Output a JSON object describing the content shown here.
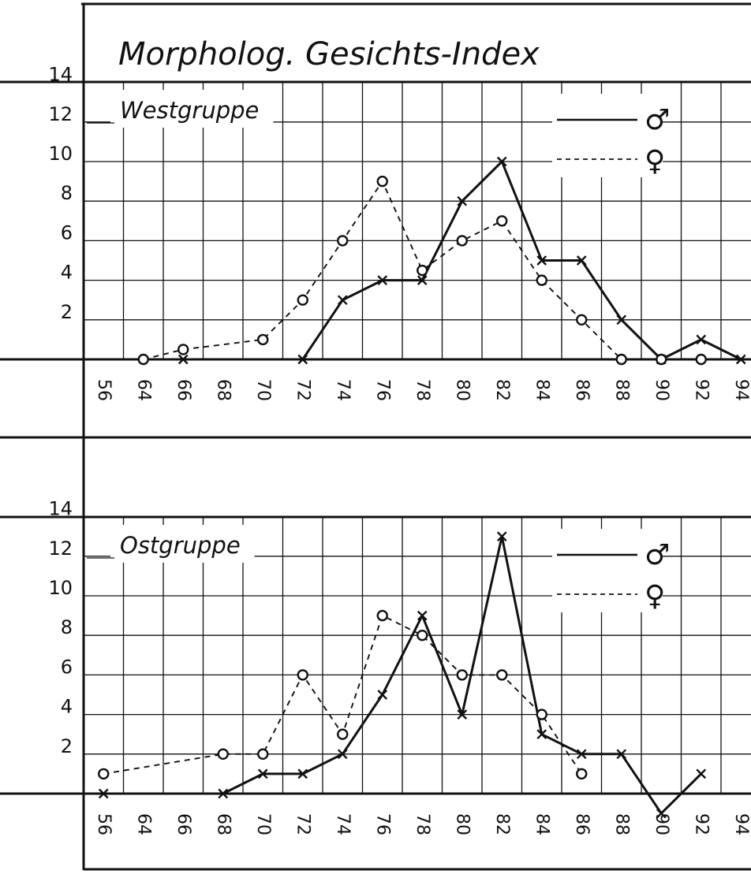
{
  "title": "Morpholog. Gesichts-Index",
  "legend": {
    "male_symbol": "♂",
    "female_symbol": "♀"
  },
  "colors": {
    "ink": "#111111",
    "paper": "#ffffff"
  },
  "chart_data": [
    {
      "type": "line",
      "panel_label": "Westgruppe",
      "y_ticks": [
        "2",
        "4",
        "6",
        "8",
        "10",
        "12",
        "14"
      ],
      "x_ticks": [
        "56",
        "64",
        "66",
        "68",
        "70",
        "72",
        "74",
        "76",
        "78",
        "80",
        "82",
        "84",
        "86",
        "88",
        "90",
        "92",
        "94"
      ],
      "ylim": [
        0,
        14
      ],
      "grid": true,
      "legend_position": "top-right",
      "series": [
        {
          "sex": "male",
          "marker": "x",
          "line_style": "solid",
          "points": [
            {
              "x": "66",
              "y": 0
            },
            {
              "x": "72",
              "y": 0
            },
            {
              "x": "74",
              "y": 3
            },
            {
              "x": "76",
              "y": 4
            },
            {
              "x": "78",
              "y": 4
            },
            {
              "x": "80",
              "y": 8
            },
            {
              "x": "82",
              "y": 10
            },
            {
              "x": "84",
              "y": 5
            },
            {
              "x": "86",
              "y": 5
            },
            {
              "x": "88",
              "y": 2
            },
            {
              "x": "90",
              "y": 0
            },
            {
              "x": "92",
              "y": 1
            },
            {
              "x": "94",
              "y": 0
            }
          ]
        },
        {
          "sex": "female",
          "marker": "o",
          "line_style": "dashed",
          "points": [
            {
              "x": "64",
              "y": 0
            },
            {
              "x": "66",
              "y": 0.5
            },
            {
              "x": "70",
              "y": 1
            },
            {
              "x": "72",
              "y": 3
            },
            {
              "x": "74",
              "y": 6
            },
            {
              "x": "76",
              "y": 9
            },
            {
              "x": "78",
              "y": 4.5
            },
            {
              "x": "80",
              "y": 6
            },
            {
              "x": "82",
              "y": 7
            },
            {
              "x": "84",
              "y": 4
            },
            {
              "x": "86",
              "y": 2
            },
            {
              "x": "88",
              "y": 0
            },
            {
              "x": "90",
              "y": 0
            },
            {
              "x": "92",
              "y": 0
            }
          ]
        }
      ]
    },
    {
      "type": "line",
      "panel_label": "Ostgruppe",
      "y_ticks": [
        "2",
        "4",
        "6",
        "8",
        "10",
        "12",
        "14"
      ],
      "x_ticks": [
        "56",
        "64",
        "66",
        "68",
        "70",
        "72",
        "74",
        "76",
        "78",
        "80",
        "82",
        "84",
        "86",
        "88",
        "90",
        "92",
        "94"
      ],
      "ylim": [
        0,
        14
      ],
      "grid": true,
      "legend_position": "top-right",
      "series": [
        {
          "sex": "male",
          "marker": "x",
          "line_style": "solid",
          "points": [
            {
              "x": "56",
              "y": 0
            },
            {
              "x": "68",
              "y": 0
            },
            {
              "x": "70",
              "y": 1
            },
            {
              "x": "72",
              "y": 1
            },
            {
              "x": "74",
              "y": 2
            },
            {
              "x": "76",
              "y": 5
            },
            {
              "x": "78",
              "y": 9
            },
            {
              "x": "80",
              "y": 4
            },
            {
              "x": "82",
              "y": 13
            },
            {
              "x": "84",
              "y": 3
            },
            {
              "x": "86",
              "y": 2
            },
            {
              "x": "88",
              "y": 2
            },
            {
              "x": "90",
              "y": -1
            },
            {
              "x": "92",
              "y": 1
            }
          ]
        },
        {
          "sex": "female",
          "marker": "o",
          "line_style": "dashed",
          "points": [
            {
              "x": "56",
              "y": 1
            },
            {
              "x": "68",
              "y": 2
            },
            {
              "x": "70",
              "y": 2
            },
            {
              "x": "72",
              "y": 6
            },
            {
              "x": "74",
              "y": 3
            },
            {
              "x": "76",
              "y": 9
            },
            {
              "x": "78",
              "y": 8
            },
            {
              "x": "80",
              "y": 6
            },
            {
              "x": "82",
              "y": 6
            },
            {
              "x": "84",
              "y": 4
            },
            {
              "x": "86",
              "y": 1
            }
          ]
        }
      ]
    }
  ]
}
